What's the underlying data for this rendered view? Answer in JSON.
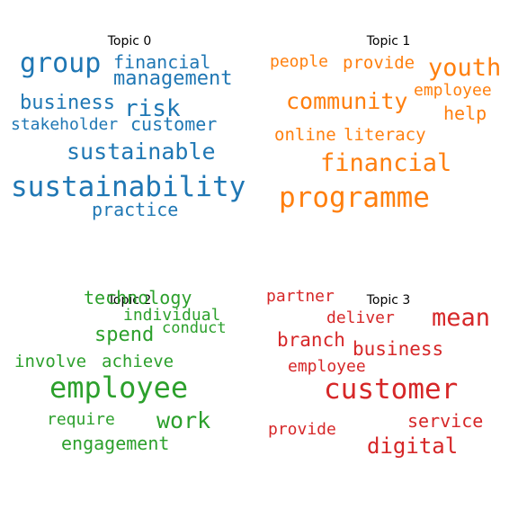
{
  "colors": {
    "topic_0": "#1f77b4",
    "topic_1": "#ff7f0e",
    "topic_2": "#2ca02c",
    "topic_3": "#d62728"
  },
  "topics": [
    {
      "title": "Topic 0",
      "words": [
        "group",
        "financial",
        "management",
        "business",
        "risk",
        "stakeholder",
        "customer",
        "sustainable",
        "sustainability",
        "practice"
      ]
    },
    {
      "title": "Topic 1",
      "words": [
        "people",
        "provide",
        "youth",
        "employee",
        "community",
        "help",
        "online",
        "literacy",
        "financial",
        "programme"
      ]
    },
    {
      "title": "Topic 2",
      "words": [
        "technology",
        "individual",
        "spend",
        "conduct",
        "involve",
        "achieve",
        "employee",
        "require",
        "work",
        "engagement"
      ]
    },
    {
      "title": "Topic 3",
      "words": [
        "partner",
        "deliver",
        "mean",
        "branch",
        "business",
        "employee",
        "customer",
        "provide",
        "service",
        "digital"
      ]
    }
  ]
}
